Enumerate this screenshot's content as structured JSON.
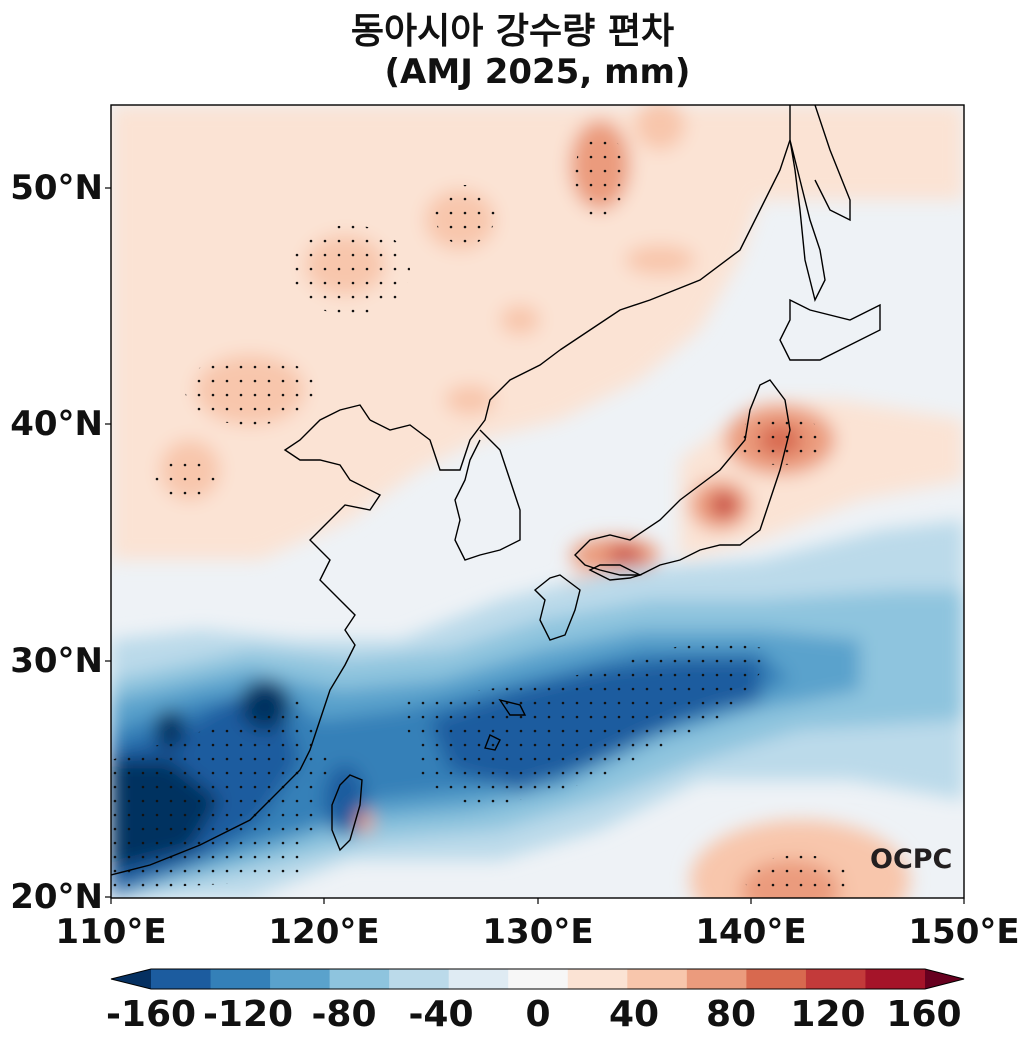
{
  "title": {
    "line1": "동아시아 강수량 편차",
    "line2": "(AMJ 2025, mm)"
  },
  "map": {
    "region": {
      "lon_min": 110,
      "lon_max": 150,
      "lat_min": 20,
      "lat_max": 53.5
    },
    "lat_ticks": [
      "20°N",
      "30°N",
      "40°N",
      "50°N"
    ],
    "lon_ticks": [
      "110°E",
      "120°E",
      "130°E",
      "140°E",
      "150°E"
    ],
    "coastlines": true,
    "stippling": "significant anomalies"
  },
  "colorbar": {
    "orientation": "horizontal",
    "ticks": [
      "-160",
      "-120",
      "-80",
      "-40",
      "0",
      "40",
      "80",
      "120",
      "160"
    ],
    "colors": [
      "#053061",
      "#1c5c9f",
      "#3480b8",
      "#5aa2cc",
      "#8ec4de",
      "#bbdaea",
      "#dfebf3",
      "#f7f7f7",
      "#fbe3d4",
      "#f8c6ac",
      "#eb9b7d",
      "#d8694f",
      "#c33a3a",
      "#a51429",
      "#67001f"
    ]
  },
  "logo": {
    "text": "OCPC"
  }
}
